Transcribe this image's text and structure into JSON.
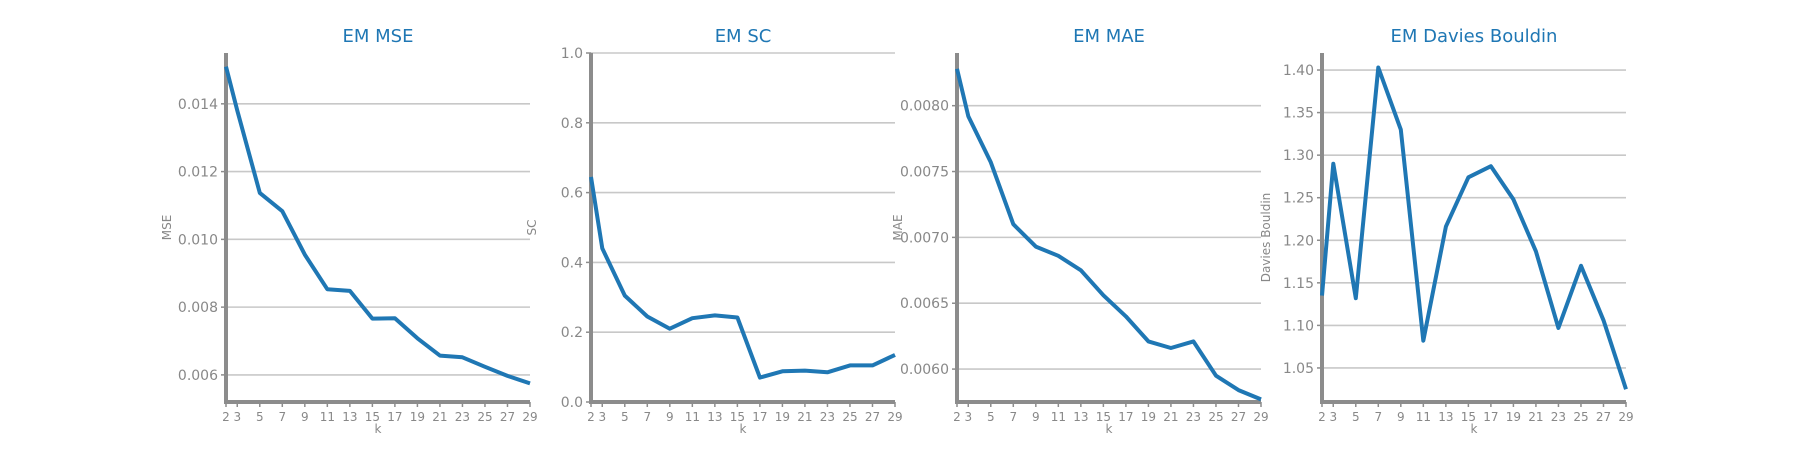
{
  "colors": {
    "series": "#1f77b4",
    "title": "#1f77b4",
    "grid": "#c8c8c8",
    "axis": "#8c8c8c",
    "text": "#888888"
  },
  "chart_data": [
    {
      "type": "line",
      "title": "EM MSE",
      "xlabel": "k",
      "ylabel": "MSE",
      "x": [
        2,
        3,
        5,
        7,
        9,
        11,
        13,
        15,
        17,
        19,
        21,
        23,
        25,
        27,
        29
      ],
      "xticks": [
        2,
        3,
        5,
        7,
        9,
        11,
        13,
        15,
        17,
        19,
        21,
        23,
        25,
        27,
        29
      ],
      "series": [
        {
          "values": [
            0.0151,
            0.0138,
            0.01137,
            0.01083,
            0.00955,
            0.00853,
            0.00848,
            0.00766,
            0.00767,
            0.00708,
            0.00657,
            0.00652,
            0.00624,
            0.00597,
            0.00575
          ]
        }
      ],
      "ylim": [
        0.0052,
        0.0155
      ],
      "yticks": [
        0.006,
        0.008,
        0.01,
        0.012,
        0.014
      ],
      "yticklabels": [
        "0.006",
        "0.008",
        "0.010",
        "0.012",
        "0.014"
      ],
      "grid": true
    },
    {
      "type": "line",
      "title": "EM SC",
      "xlabel": "k",
      "ylabel": "SC",
      "x": [
        2,
        3,
        5,
        7,
        9,
        11,
        13,
        15,
        17,
        19,
        21,
        23,
        25,
        27,
        29
      ],
      "xticks": [
        2,
        3,
        5,
        7,
        9,
        11,
        13,
        15,
        17,
        19,
        21,
        23,
        25,
        27,
        29
      ],
      "series": [
        {
          "values": [
            0.645,
            0.44,
            0.305,
            0.245,
            0.21,
            0.24,
            0.248,
            0.242,
            0.07,
            0.088,
            0.09,
            0.085,
            0.105,
            0.105,
            0.135
          ]
        }
      ],
      "ylim": [
        0.0,
        1.0
      ],
      "yticks": [
        0.0,
        0.2,
        0.4,
        0.6,
        0.8,
        1.0
      ],
      "yticklabels": [
        "0.0",
        "0.2",
        "0.4",
        "0.6",
        "0.8",
        "1.0"
      ],
      "grid": true
    },
    {
      "type": "line",
      "title": "EM MAE",
      "xlabel": "k",
      "ylabel": "MAE",
      "x": [
        2,
        3,
        5,
        7,
        9,
        11,
        13,
        15,
        17,
        19,
        21,
        23,
        25,
        27,
        29
      ],
      "xticks": [
        2,
        3,
        5,
        7,
        9,
        11,
        13,
        15,
        17,
        19,
        21,
        23,
        25,
        27,
        29
      ],
      "series": [
        {
          "values": [
            0.00828,
            0.00792,
            0.00757,
            0.0071,
            0.00693,
            0.00686,
            0.00675,
            0.00656,
            0.0064,
            0.00621,
            0.00616,
            0.00621,
            0.00595,
            0.00584,
            0.00577
          ]
        }
      ],
      "ylim": [
        0.00575,
        0.0084
      ],
      "yticks": [
        0.006,
        0.0065,
        0.007,
        0.0075,
        0.008
      ],
      "yticklabels": [
        "0.0060",
        "0.0065",
        "0.0070",
        "0.0075",
        "0.0080"
      ],
      "grid": true
    },
    {
      "type": "line",
      "title": "EM Davies Bouldin",
      "xlabel": "k",
      "ylabel": "Davies Bouldin",
      "x": [
        2,
        3,
        5,
        7,
        9,
        11,
        13,
        15,
        17,
        19,
        21,
        23,
        25,
        27,
        29
      ],
      "xticks": [
        2,
        3,
        5,
        7,
        9,
        11,
        13,
        15,
        17,
        19,
        21,
        23,
        25,
        27,
        29
      ],
      "series": [
        {
          "values": [
            1.135,
            1.29,
            1.132,
            1.403,
            1.33,
            1.082,
            1.216,
            1.274,
            1.287,
            1.248,
            1.187,
            1.097,
            1.17,
            1.106,
            1.025
          ]
        }
      ],
      "ylim": [
        1.01,
        1.42
      ],
      "yticks": [
        1.05,
        1.1,
        1.15,
        1.2,
        1.25,
        1.3,
        1.35,
        1.4
      ],
      "yticklabels": [
        "1.05",
        "1.10",
        "1.15",
        "1.20",
        "1.25",
        "1.30",
        "1.35",
        "1.40"
      ],
      "grid": true
    }
  ]
}
